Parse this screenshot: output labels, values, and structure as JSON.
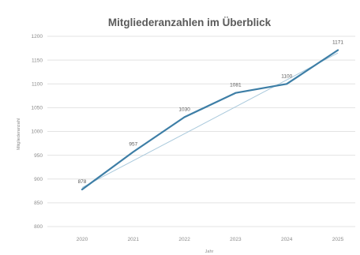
{
  "chart_data": {
    "type": "line",
    "title": "Mitgliederanzahlen im Überblick",
    "xlabel": "Jahr",
    "ylabel": "Mitgliederanzahl",
    "categories": [
      "2020",
      "2021",
      "2022",
      "2023",
      "2024",
      "2025"
    ],
    "series": [
      {
        "values": [
          878,
          957,
          1030,
          1081,
          1100,
          1171
        ],
        "labels": [
          "878",
          "957",
          "1030",
          "1081",
          "1100",
          "1171"
        ],
        "color": "#3d7ea6"
      }
    ],
    "trendline": {
      "start": 882,
      "end": 1165,
      "color": "#a9c9dc"
    },
    "yticks": [
      "800",
      "850",
      "900",
      "950",
      "1000",
      "1050",
      "1100",
      "1150",
      "1200"
    ],
    "ylim": [
      800,
      1200
    ],
    "grid": true,
    "legend": "none"
  }
}
